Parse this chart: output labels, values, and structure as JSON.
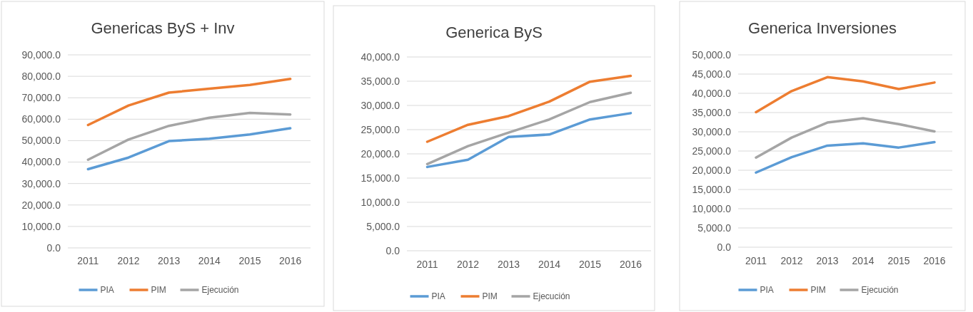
{
  "chart_data": [
    {
      "type": "line",
      "title": "Genericas ByS + Inv",
      "categories": [
        "2011",
        "2012",
        "2013",
        "2014",
        "2015",
        "2016"
      ],
      "ylim": [
        0,
        90000
      ],
      "yticks": [
        {
          "value": 0,
          "label": "0.0"
        },
        {
          "value": 10000,
          "label": "10,000.0"
        },
        {
          "value": 20000,
          "label": "20,000.0"
        },
        {
          "value": 30000,
          "label": "30,000.0"
        },
        {
          "value": 40000,
          "label": "40,000.0"
        },
        {
          "value": 50000,
          "label": "50,000.0"
        },
        {
          "value": 60000,
          "label": "60,000.0"
        },
        {
          "value": 70000,
          "label": "70,000.0"
        },
        {
          "value": 80000,
          "label": "80,000.0"
        },
        {
          "value": 90000,
          "label": "90,000.0"
        }
      ],
      "grid": "y",
      "legend": "bottom",
      "series": [
        {
          "name": "PIA",
          "color": "#5b9bd5",
          "values": [
            36700,
            42100,
            49800,
            50900,
            52900,
            55800
          ]
        },
        {
          "name": "PIM",
          "color": "#ed7d31",
          "values": [
            57300,
            66400,
            72400,
            74200,
            76000,
            78800
          ]
        },
        {
          "name": "Ejecución",
          "color": "#a5a5a5",
          "values": [
            41100,
            50500,
            56900,
            60700,
            62900,
            62200
          ]
        }
      ]
    },
    {
      "type": "line",
      "title": "Generica ByS",
      "categories": [
        "2011",
        "2012",
        "2013",
        "2014",
        "2015",
        "2016"
      ],
      "ylim": [
        0,
        40000
      ],
      "yticks": [
        {
          "value": 0,
          "label": "0.0"
        },
        {
          "value": 5000,
          "label": "5,000.0"
        },
        {
          "value": 10000,
          "label": "10,000.0"
        },
        {
          "value": 15000,
          "label": "15,000.0"
        },
        {
          "value": 20000,
          "label": "20,000.0"
        },
        {
          "value": 25000,
          "label": "25,000.0"
        },
        {
          "value": 30000,
          "label": "30,000.0"
        },
        {
          "value": 35000,
          "label": "35,000.0"
        },
        {
          "value": 40000,
          "label": "40,000.0"
        }
      ],
      "grid": "y",
      "legend": "bottom",
      "series": [
        {
          "name": "PIA",
          "color": "#5b9bd5",
          "values": [
            17300,
            18800,
            23500,
            24000,
            27100,
            28400
          ]
        },
        {
          "name": "PIM",
          "color": "#ed7d31",
          "values": [
            22500,
            26000,
            27800,
            30800,
            34900,
            36100
          ]
        },
        {
          "name": "Ejecución",
          "color": "#a5a5a5",
          "values": [
            17900,
            21600,
            24400,
            27100,
            30700,
            32600
          ]
        }
      ]
    },
    {
      "type": "line",
      "title": "Generica Inversiones",
      "categories": [
        "2011",
        "2012",
        "2013",
        "2014",
        "2015",
        "2016"
      ],
      "ylim": [
        0,
        50000
      ],
      "yticks": [
        {
          "value": 0,
          "label": "0.0"
        },
        {
          "value": 5000,
          "label": "5,000.0"
        },
        {
          "value": 10000,
          "label": "10,000.0"
        },
        {
          "value": 15000,
          "label": "15,000.0"
        },
        {
          "value": 20000,
          "label": "20,000.0"
        },
        {
          "value": 25000,
          "label": "25,000.0"
        },
        {
          "value": 30000,
          "label": "30,000.0"
        },
        {
          "value": 35000,
          "label": "35,000.0"
        },
        {
          "value": 40000,
          "label": "40,000.0"
        },
        {
          "value": 45000,
          "label": "45,000.0"
        },
        {
          "value": 50000,
          "label": "50,000.0"
        }
      ],
      "grid": "y",
      "legend": "bottom",
      "series": [
        {
          "name": "PIA",
          "color": "#5b9bd5",
          "values": [
            19400,
            23400,
            26400,
            27000,
            25900,
            27300
          ]
        },
        {
          "name": "PIM",
          "color": "#ed7d31",
          "values": [
            35100,
            40600,
            44200,
            43100,
            41100,
            42800
          ]
        },
        {
          "name": "Ejecución",
          "color": "#a5a5a5",
          "values": [
            23300,
            28500,
            32400,
            33500,
            32000,
            30100
          ]
        }
      ]
    }
  ]
}
